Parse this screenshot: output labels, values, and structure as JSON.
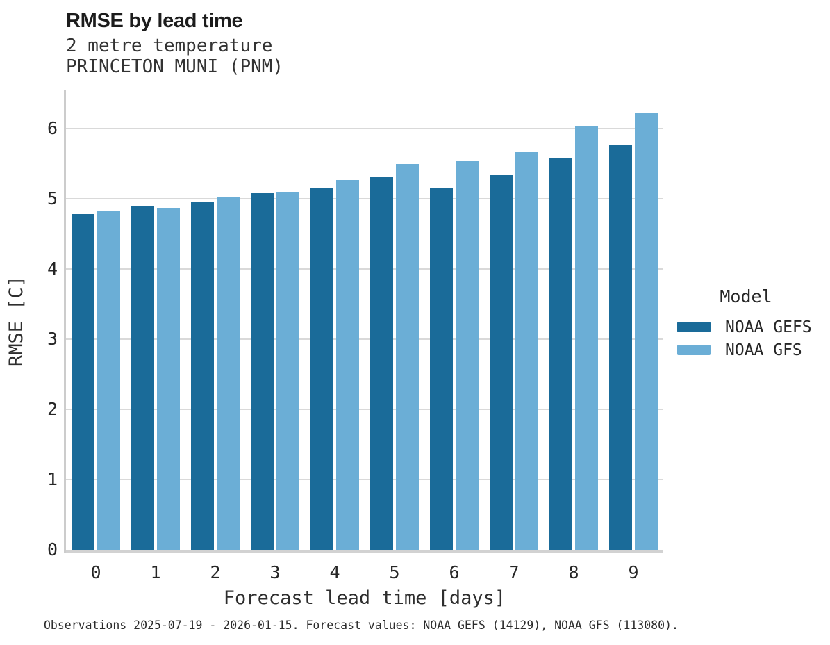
{
  "chart_data": {
    "type": "bar",
    "title": "RMSE by lead time",
    "subtitle_line1": "2 metre temperature",
    "subtitle_line2": "PRINCETON MUNI (PNM)",
    "categories": [
      0,
      1,
      2,
      3,
      4,
      5,
      6,
      7,
      8,
      9
    ],
    "series": [
      {
        "name": "NOAA GEFS",
        "color": "#1a6b99",
        "values": [
          4.78,
          4.9,
          4.96,
          5.09,
          5.15,
          5.3,
          5.16,
          5.33,
          5.58,
          5.76
        ]
      },
      {
        "name": "NOAA GFS",
        "color": "#6baed6",
        "values": [
          4.82,
          4.87,
          5.02,
          5.1,
          5.26,
          5.49,
          5.53,
          5.66,
          6.04,
          6.22
        ]
      }
    ],
    "xlabel": "Forecast lead time [days]",
    "ylabel": "RMSE [C]",
    "ylim": [
      0,
      6.55
    ],
    "yticks": [
      0,
      1,
      2,
      3,
      4,
      5,
      6
    ],
    "grid": "horizontal",
    "legend_title": "Model",
    "legend_position": "right",
    "axis_color": "#cccccc",
    "gridline_color": "#d9d9d9"
  },
  "footer": {
    "text": "Observations 2025-07-19 - 2026-01-15. Forecast values: NOAA GEFS (14129), NOAA GFS (113080)."
  }
}
